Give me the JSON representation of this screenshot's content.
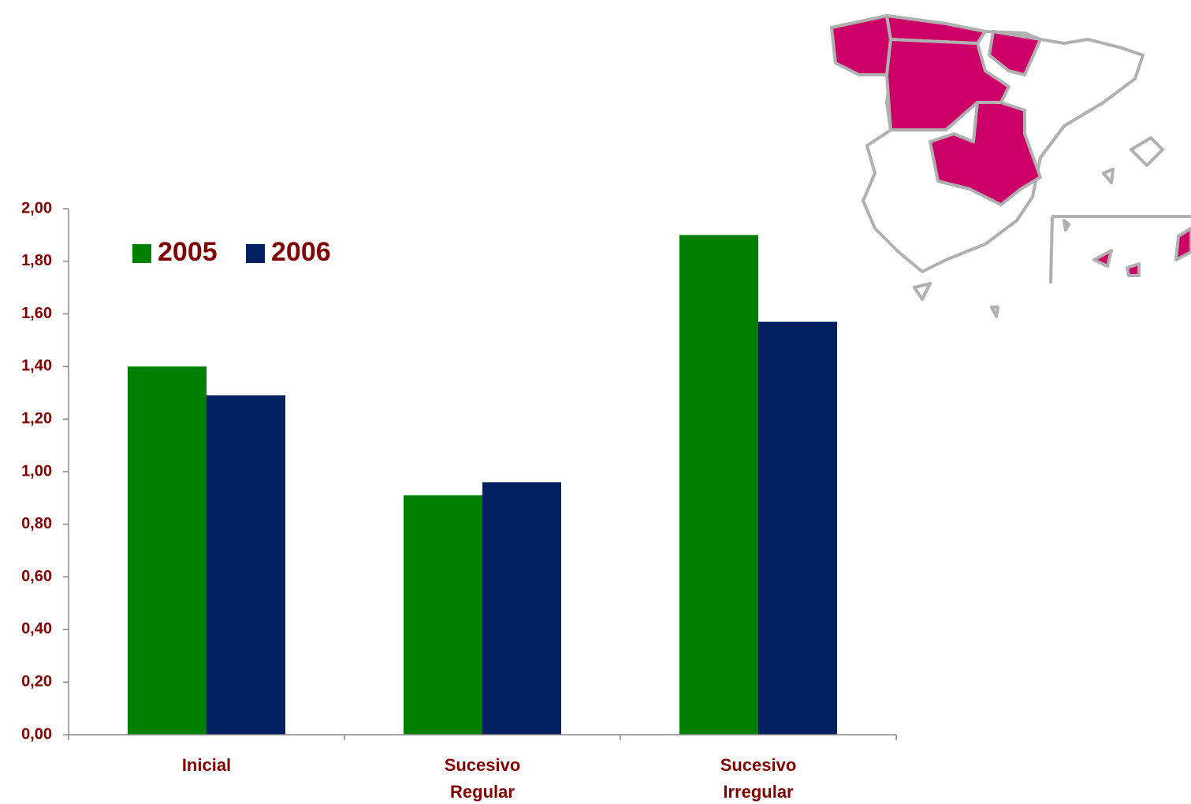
{
  "chart_data": {
    "type": "bar",
    "categories": [
      "Inicial",
      "Sucesivo\nRegular",
      "Sucesivo\nIrregular"
    ],
    "series": [
      {
        "name": "2005",
        "color": "#008000",
        "values": [
          1.4,
          0.91,
          1.9
        ]
      },
      {
        "name": "2006",
        "color": "#002060",
        "values": [
          1.29,
          0.96,
          1.57
        ]
      }
    ],
    "ylim": [
      0,
      2
    ],
    "yticks": [
      {
        "value": 0,
        "label": "0,00"
      },
      {
        "value": 0.2,
        "label": "0,20"
      },
      {
        "value": 0.4,
        "label": "0,40"
      },
      {
        "value": 0.6,
        "label": "0,60"
      },
      {
        "value": 0.8,
        "label": "0,80"
      },
      {
        "value": 1,
        "label": "1,00"
      },
      {
        "value": 1.2,
        "label": "1,20"
      },
      {
        "value": 1.4,
        "label": "1,40"
      },
      {
        "value": 1.6,
        "label": "1,60"
      },
      {
        "value": 1.8,
        "label": "1,80"
      },
      {
        "value": 2,
        "label": "2,00"
      }
    ],
    "grid": false,
    "legend": "top-left"
  }
}
